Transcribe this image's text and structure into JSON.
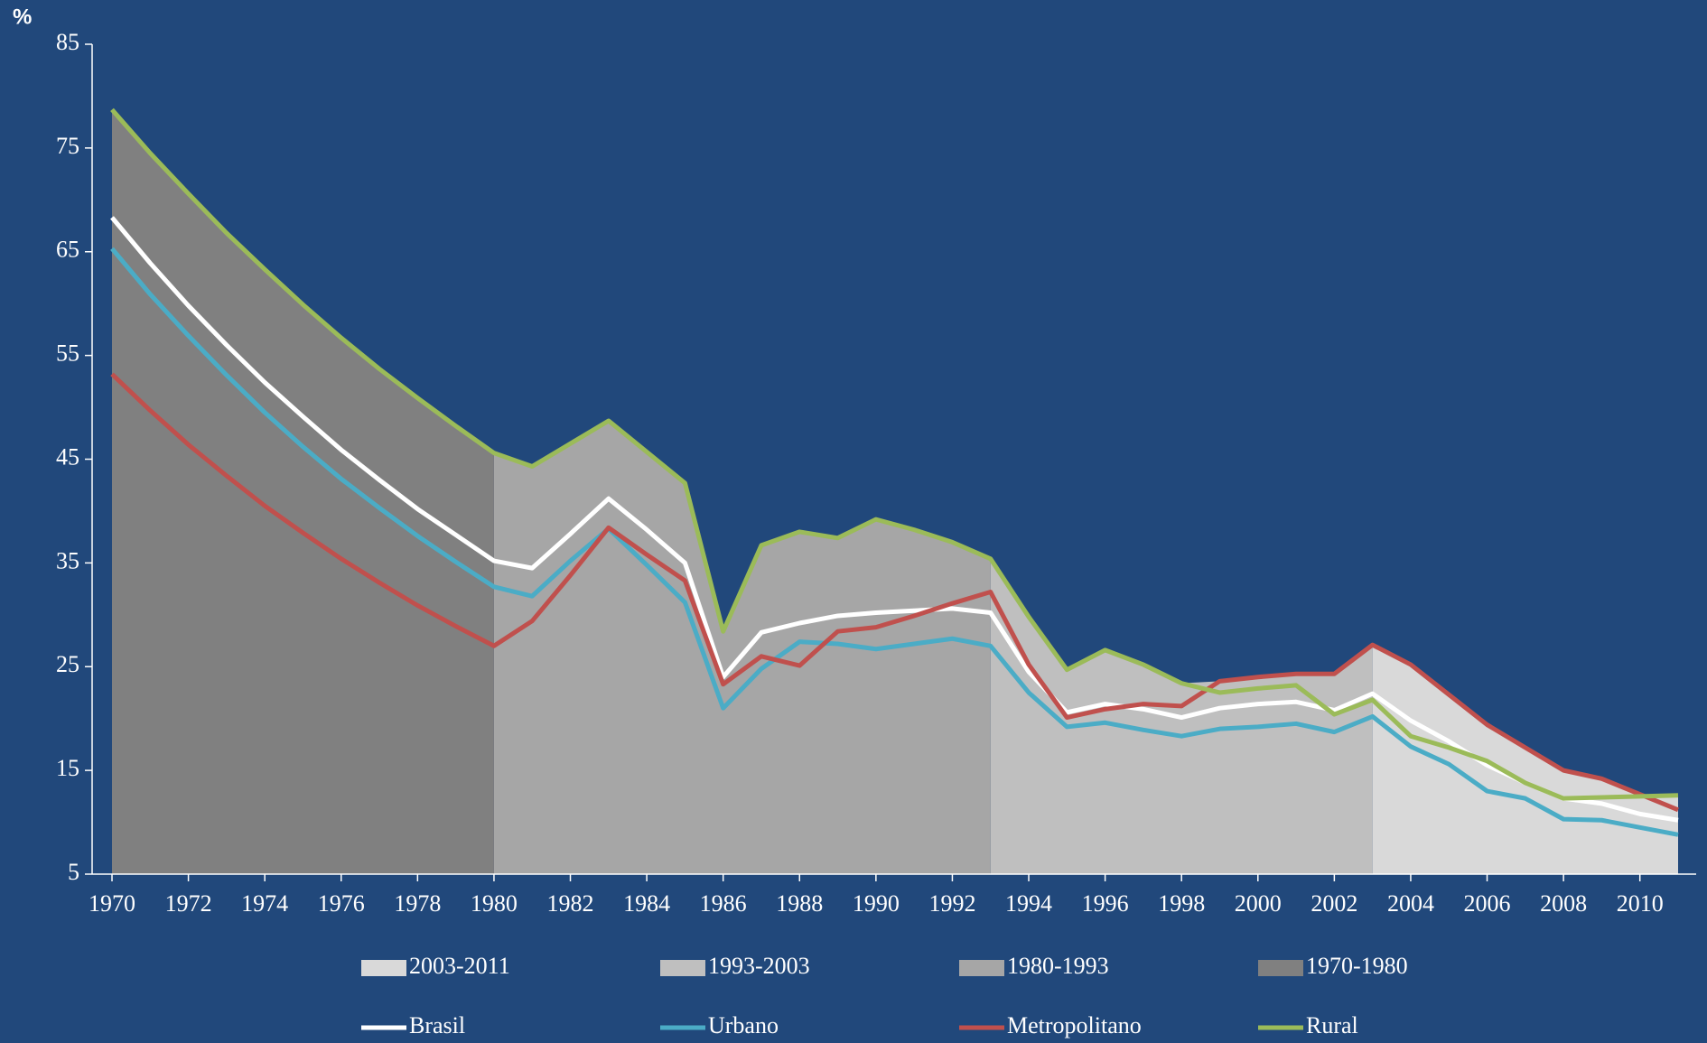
{
  "chart_data": {
    "type": "line",
    "y_label": "%",
    "x": [
      1970,
      1971,
      1972,
      1973,
      1974,
      1975,
      1976,
      1977,
      1978,
      1979,
      1980,
      1981,
      1982,
      1983,
      1984,
      1985,
      1986,
      1987,
      1988,
      1989,
      1990,
      1991,
      1992,
      1993,
      1994,
      1995,
      1996,
      1997,
      1998,
      1999,
      2000,
      2001,
      2002,
      2003,
      2004,
      2005,
      2006,
      2007,
      2008,
      2009,
      2010,
      2011
    ],
    "xlim": [
      1970,
      2011
    ],
    "xticks": [
      1970,
      1972,
      1974,
      1976,
      1978,
      1980,
      1982,
      1984,
      1986,
      1988,
      1990,
      1992,
      1994,
      1996,
      1998,
      2000,
      2002,
      2004,
      2006,
      2008,
      2010
    ],
    "ylim": [
      5,
      85
    ],
    "yticks": [
      5,
      15,
      25,
      35,
      45,
      55,
      65,
      75,
      85
    ],
    "periods": [
      {
        "name": "2003-2011",
        "start": 2003,
        "end": 2011,
        "color": "#d9d9d9"
      },
      {
        "name": "1993-2003",
        "start": 1993,
        "end": 2003,
        "color": "#bfbfbf"
      },
      {
        "name": "1980-1993",
        "start": 1980,
        "end": 1993,
        "color": "#a6a6a6"
      },
      {
        "name": "1970-1980",
        "start": 1970,
        "end": 1980,
        "color": "#808080"
      }
    ],
    "series": [
      {
        "name": "Brasil",
        "color": "#ffffff",
        "values": [
          68.3,
          63.9,
          59.8,
          56.0,
          52.4,
          49.1,
          45.9,
          43.0,
          40.2,
          37.7,
          35.2,
          34.5,
          37.8,
          41.2,
          38.2,
          35.0,
          24.0,
          28.3,
          29.2,
          29.9,
          30.2,
          30.4,
          30.6,
          30.2,
          24.5,
          20.6,
          21.4,
          20.9,
          20.1,
          21.0,
          21.4,
          21.6,
          20.8,
          22.4,
          19.8,
          17.8,
          15.5,
          13.8,
          12.3,
          11.8,
          10.8,
          10.2
        ]
      },
      {
        "name": "Urbano",
        "color": "#4bacc6",
        "values": [
          65.3,
          60.9,
          56.9,
          53.1,
          49.5,
          46.2,
          43.1,
          40.3,
          37.6,
          35.1,
          32.7,
          31.8,
          35.2,
          38.3,
          34.8,
          31.2,
          21.0,
          24.8,
          27.4,
          27.2,
          26.7,
          27.2,
          27.7,
          27.0,
          22.5,
          19.2,
          19.6,
          18.9,
          18.3,
          19.0,
          19.2,
          19.5,
          18.7,
          20.2,
          17.3,
          15.6,
          13.0,
          12.3,
          10.3,
          10.2,
          9.5,
          8.8
        ]
      },
      {
        "name": "Metropolitano",
        "color": "#c0504d",
        "values": [
          53.2,
          49.7,
          46.4,
          43.4,
          40.5,
          37.9,
          35.4,
          33.1,
          30.9,
          28.9,
          27.0,
          29.4,
          33.8,
          38.4,
          35.8,
          33.3,
          23.3,
          26.0,
          25.1,
          28.4,
          28.8,
          29.9,
          31.1,
          32.2,
          25.2,
          20.1,
          20.9,
          21.4,
          21.2,
          23.6,
          24.0,
          24.3,
          24.3,
          27.1,
          25.2,
          22.3,
          19.4,
          17.2,
          15.0,
          14.2,
          12.7,
          11.2
        ]
      },
      {
        "name": "Rural",
        "color": "#9bbb59",
        "values": [
          78.7,
          74.5,
          70.6,
          66.8,
          63.3,
          59.9,
          56.7,
          53.7,
          50.9,
          48.2,
          45.6,
          44.3,
          46.5,
          48.7,
          45.7,
          42.7,
          28.4,
          36.7,
          38.0,
          37.4,
          39.2,
          38.2,
          37.0,
          35.4,
          29.8,
          24.7,
          26.6,
          25.2,
          23.4,
          22.5,
          22.9,
          23.2,
          20.4,
          21.8,
          18.3,
          17.2,
          15.9,
          13.8,
          12.3,
          12.4,
          12.5,
          12.6
        ]
      }
    ]
  }
}
